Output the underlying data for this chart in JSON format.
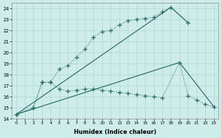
{
  "xlabel": "Humidex (Indice chaleur)",
  "bg_color": "#ceecea",
  "grid_color": "#aed4d2",
  "line_color": "#2e6e68",
  "xlim": [
    -0.5,
    23.5
  ],
  "ylim": [
    14,
    24.5
  ],
  "yticks": [
    14,
    15,
    16,
    17,
    18,
    19,
    20,
    21,
    22,
    23,
    24
  ],
  "xticks": [
    0,
    1,
    2,
    3,
    4,
    5,
    6,
    7,
    8,
    9,
    10,
    11,
    12,
    13,
    14,
    15,
    16,
    17,
    18,
    19,
    20,
    21,
    22,
    23
  ],
  "line1_x": [
    0,
    2,
    3,
    4,
    5,
    6,
    7,
    8,
    9,
    10,
    11,
    12,
    13,
    14,
    15,
    16,
    17,
    18,
    20
  ],
  "line1_y": [
    14.4,
    15.0,
    17.3,
    17.3,
    18.5,
    18.8,
    19.6,
    20.3,
    21.4,
    21.9,
    22.0,
    22.5,
    22.9,
    23.0,
    23.1,
    23.2,
    23.7,
    24.1,
    22.7
  ],
  "line2_x": [
    0,
    2,
    3,
    4,
    5,
    6,
    7,
    8,
    9,
    10,
    11,
    12,
    13,
    14,
    15,
    16,
    17,
    19,
    20,
    21,
    22,
    23
  ],
  "line2_y": [
    14.4,
    15.0,
    17.3,
    17.3,
    16.7,
    16.5,
    16.6,
    16.7,
    16.7,
    16.6,
    16.5,
    16.4,
    16.3,
    16.2,
    16.1,
    16.0,
    15.9,
    19.1,
    16.1,
    15.7,
    15.3,
    15.1
  ],
  "line3_x": [
    0,
    18,
    20
  ],
  "line3_y": [
    14.4,
    24.1,
    22.7
  ],
  "line4_x": [
    0,
    19,
    23
  ],
  "line4_y": [
    14.4,
    19.1,
    15.1
  ]
}
